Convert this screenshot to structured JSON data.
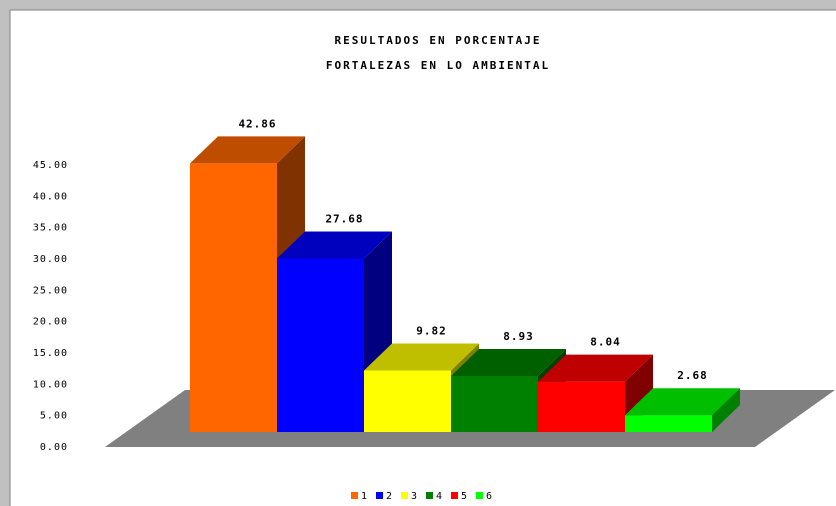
{
  "chart_data": {
    "type": "bar3d",
    "title": "RESULTADOS EN PORCENTAJE",
    "subtitle": "FORTALEZAS EN LO AMBIENTAL",
    "categories": [
      "1",
      "2",
      "3",
      "4",
      "5",
      "6"
    ],
    "values": [
      42.86,
      27.68,
      9.82,
      8.93,
      8.04,
      2.68
    ],
    "colors": [
      "#ff6600",
      "#0000ff",
      "#ffff00",
      "#008000",
      "#ff0000",
      "#00ff00"
    ],
    "ylim": [
      0,
      45
    ],
    "yticks": [
      {
        "value": 0,
        "label": "0.00"
      },
      {
        "value": 5,
        "label": "5.00"
      },
      {
        "value": 10,
        "label": "10.00"
      },
      {
        "value": 15,
        "label": "15.00"
      },
      {
        "value": 20,
        "label": "20.00"
      },
      {
        "value": 25,
        "label": "25.00"
      },
      {
        "value": 30,
        "label": "30.00"
      },
      {
        "value": 35,
        "label": "35.00"
      },
      {
        "value": 40,
        "label": "40.00"
      },
      {
        "value": 45,
        "label": "45.00"
      }
    ],
    "legend": "bottom"
  }
}
